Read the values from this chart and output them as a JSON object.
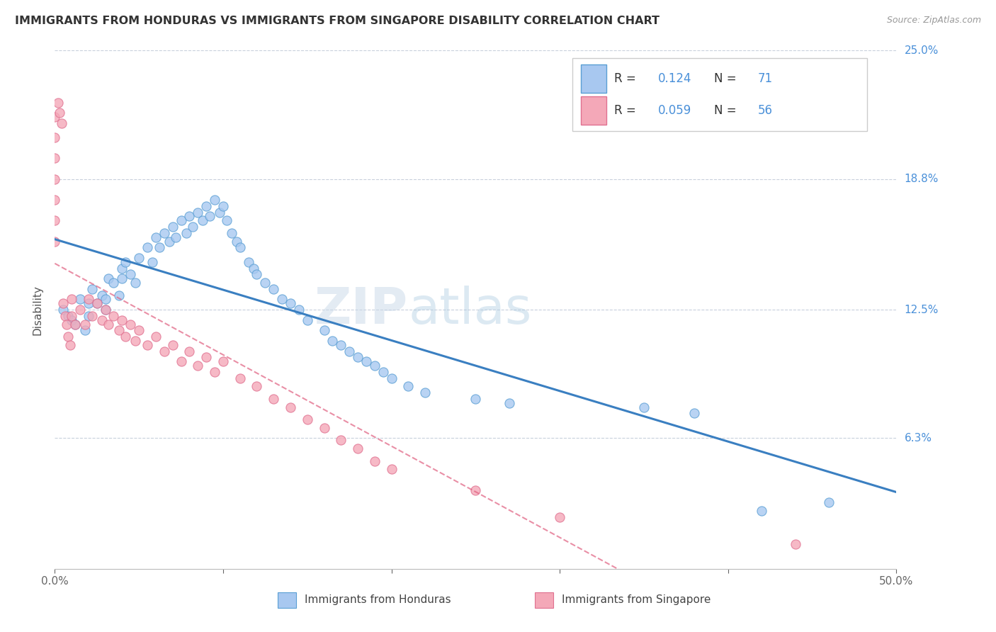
{
  "title": "IMMIGRANTS FROM HONDURAS VS IMMIGRANTS FROM SINGAPORE DISABILITY CORRELATION CHART",
  "source": "Source: ZipAtlas.com",
  "ylabel": "Disability",
  "xlim": [
    0.0,
    0.5
  ],
  "ylim": [
    0.0,
    0.25
  ],
  "ytick_labels_right": [
    "25.0%",
    "18.8%",
    "12.5%",
    "6.3%"
  ],
  "ytick_vals_right": [
    0.25,
    0.188,
    0.125,
    0.063
  ],
  "r_honduras": 0.124,
  "n_honduras": 71,
  "r_singapore": 0.059,
  "n_singapore": 56,
  "color_honduras": "#a8c8f0",
  "color_singapore": "#f4a8b8",
  "edge_honduras": "#5a9fd4",
  "edge_singapore": "#e07090",
  "line_color_honduras": "#3a7fc1",
  "line_color_singapore": "#e06080",
  "line_color_dashed": "#b8c4d8",
  "background_color": "#ffffff",
  "honduras_x": [
    0.005,
    0.008,
    0.01,
    0.012,
    0.015,
    0.018,
    0.02,
    0.02,
    0.022,
    0.025,
    0.028,
    0.03,
    0.03,
    0.032,
    0.035,
    0.038,
    0.04,
    0.04,
    0.042,
    0.045,
    0.048,
    0.05,
    0.055,
    0.058,
    0.06,
    0.062,
    0.065,
    0.068,
    0.07,
    0.072,
    0.075,
    0.078,
    0.08,
    0.082,
    0.085,
    0.088,
    0.09,
    0.092,
    0.095,
    0.098,
    0.1,
    0.102,
    0.105,
    0.108,
    0.11,
    0.115,
    0.118,
    0.12,
    0.125,
    0.13,
    0.135,
    0.14,
    0.145,
    0.15,
    0.16,
    0.165,
    0.17,
    0.175,
    0.18,
    0.185,
    0.19,
    0.195,
    0.2,
    0.21,
    0.22,
    0.25,
    0.27,
    0.35,
    0.38,
    0.42,
    0.46
  ],
  "honduras_y": [
    0.125,
    0.122,
    0.12,
    0.118,
    0.13,
    0.115,
    0.128,
    0.122,
    0.135,
    0.128,
    0.132,
    0.13,
    0.125,
    0.14,
    0.138,
    0.132,
    0.145,
    0.14,
    0.148,
    0.142,
    0.138,
    0.15,
    0.155,
    0.148,
    0.16,
    0.155,
    0.162,
    0.158,
    0.165,
    0.16,
    0.168,
    0.162,
    0.17,
    0.165,
    0.172,
    0.168,
    0.175,
    0.17,
    0.178,
    0.172,
    0.175,
    0.168,
    0.162,
    0.158,
    0.155,
    0.148,
    0.145,
    0.142,
    0.138,
    0.135,
    0.13,
    0.128,
    0.125,
    0.12,
    0.115,
    0.11,
    0.108,
    0.105,
    0.102,
    0.1,
    0.098,
    0.095,
    0.092,
    0.088,
    0.085,
    0.082,
    0.08,
    0.078,
    0.075,
    0.028,
    0.032
  ],
  "singapore_x": [
    0.0,
    0.0,
    0.0,
    0.0,
    0.0,
    0.0,
    0.0,
    0.002,
    0.003,
    0.004,
    0.005,
    0.006,
    0.007,
    0.008,
    0.009,
    0.01,
    0.01,
    0.012,
    0.015,
    0.018,
    0.02,
    0.022,
    0.025,
    0.028,
    0.03,
    0.032,
    0.035,
    0.038,
    0.04,
    0.042,
    0.045,
    0.048,
    0.05,
    0.055,
    0.06,
    0.065,
    0.07,
    0.075,
    0.08,
    0.085,
    0.09,
    0.095,
    0.1,
    0.11,
    0.12,
    0.13,
    0.14,
    0.15,
    0.16,
    0.17,
    0.18,
    0.19,
    0.2,
    0.25,
    0.3,
    0.44
  ],
  "singapore_y": [
    0.218,
    0.208,
    0.198,
    0.188,
    0.178,
    0.168,
    0.158,
    0.225,
    0.22,
    0.215,
    0.128,
    0.122,
    0.118,
    0.112,
    0.108,
    0.13,
    0.122,
    0.118,
    0.125,
    0.118,
    0.13,
    0.122,
    0.128,
    0.12,
    0.125,
    0.118,
    0.122,
    0.115,
    0.12,
    0.112,
    0.118,
    0.11,
    0.115,
    0.108,
    0.112,
    0.105,
    0.108,
    0.1,
    0.105,
    0.098,
    0.102,
    0.095,
    0.1,
    0.092,
    0.088,
    0.082,
    0.078,
    0.072,
    0.068,
    0.062,
    0.058,
    0.052,
    0.048,
    0.038,
    0.025,
    0.012
  ]
}
